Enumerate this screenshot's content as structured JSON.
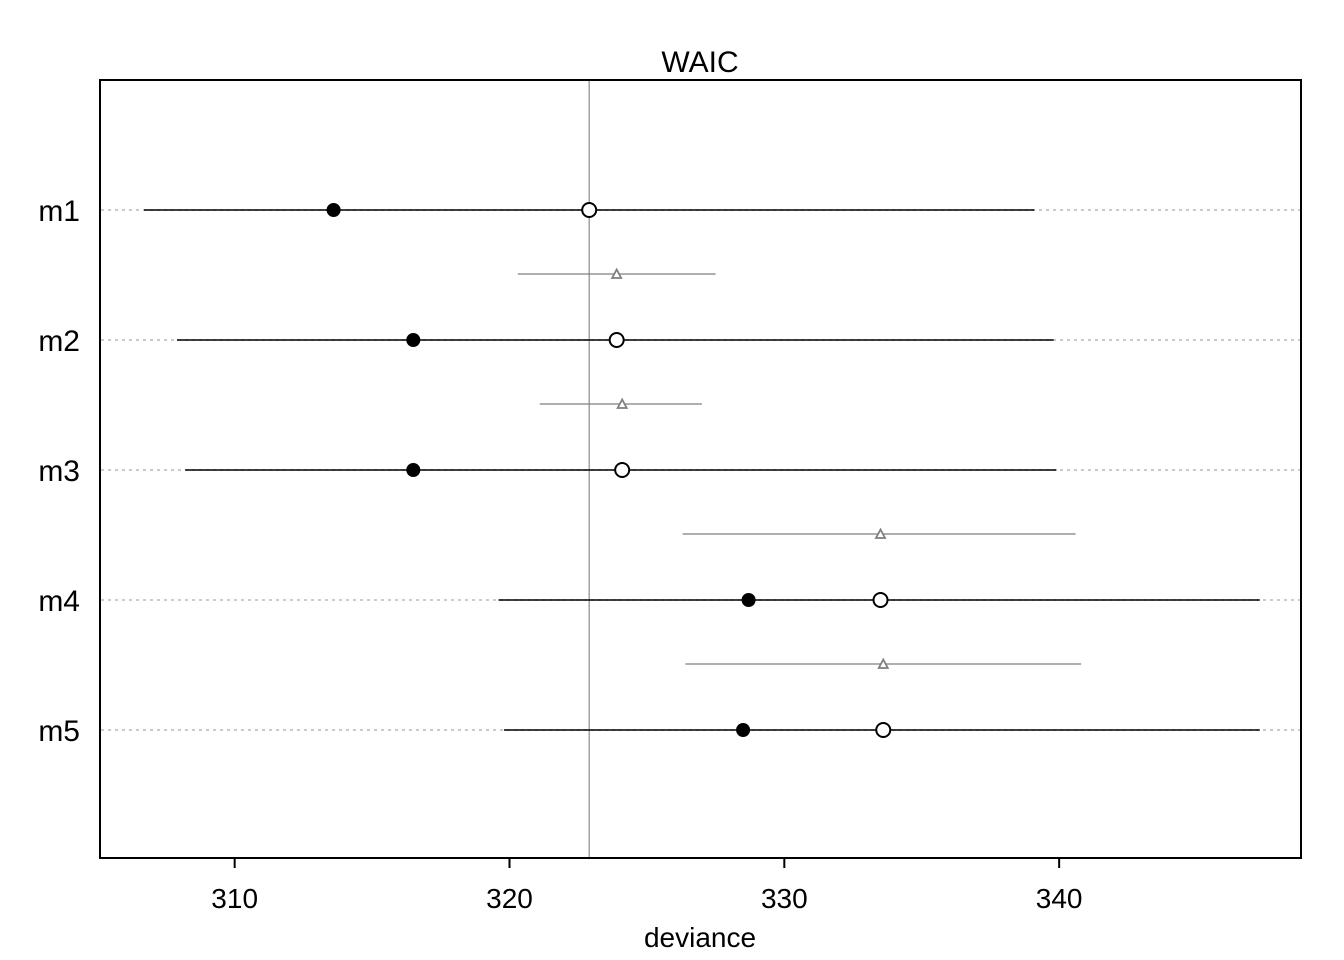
{
  "chart_data": {
    "type": "scatter",
    "title": "WAIC",
    "xlabel": "deviance",
    "ylabel": "",
    "xlim": [
      305.1,
      348.8
    ],
    "xticks": [
      310,
      320,
      330,
      340
    ],
    "xtick_labels": [
      "310",
      "320",
      "330",
      "340"
    ],
    "reference_line_x": 322.9,
    "grid": false,
    "legend": "none",
    "models": [
      {
        "label": "m1",
        "in_sample": 313.6,
        "waic": 322.9,
        "waic_lo": 306.7,
        "waic_hi": 339.1,
        "dse": null,
        "dse_lo": null,
        "dse_hi": null
      },
      {
        "label": "m2",
        "in_sample": 316.5,
        "waic": 323.9,
        "waic_lo": 307.9,
        "waic_hi": 339.8,
        "dse": 323.9,
        "dse_lo": 320.3,
        "dse_hi": 327.5
      },
      {
        "label": "m3",
        "in_sample": 316.5,
        "waic": 324.1,
        "waic_lo": 308.2,
        "waic_hi": 339.9,
        "dse": 324.1,
        "dse_lo": 321.1,
        "dse_hi": 327.0
      },
      {
        "label": "m4",
        "in_sample": 328.7,
        "waic": 333.5,
        "waic_lo": 319.6,
        "waic_hi": 347.3,
        "dse": 333.5,
        "dse_lo": 326.3,
        "dse_hi": 340.6
      },
      {
        "label": "m5",
        "in_sample": 328.5,
        "waic": 333.6,
        "waic_lo": 319.8,
        "waic_hi": 347.3,
        "dse": 333.6,
        "dse_lo": 326.4,
        "dse_hi": 340.8
      }
    ],
    "colors": {
      "main": "#000000",
      "difference": "#7f7f7f",
      "reference": "#8a8a8a",
      "dotted": "#b8b8b8"
    }
  }
}
